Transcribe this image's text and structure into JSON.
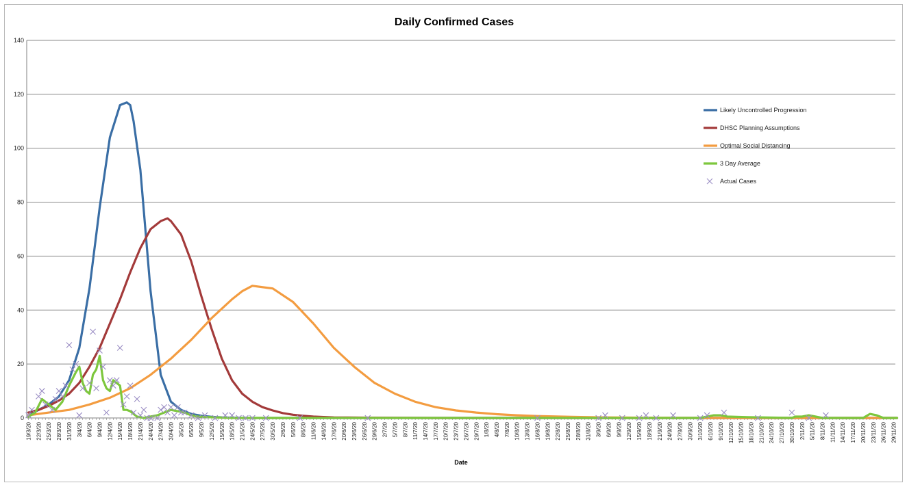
{
  "chart_data": {
    "type": "line",
    "title": "Daily Confirmed Cases",
    "xlabel": "Date",
    "ylabel": "",
    "ylim": [
      0,
      140
    ],
    "yticks": [
      0,
      20,
      40,
      60,
      80,
      100,
      120,
      140
    ],
    "grid": true,
    "legend_position": "top-right",
    "x_tick_labels": [
      "19/3/20",
      "22/3/20",
      "25/3/20",
      "28/3/20",
      "31/3/20",
      "3/4/20",
      "6/4/20",
      "9/4/20",
      "12/4/20",
      "15/4/20",
      "18/4/20",
      "21/4/20",
      "24/4/20",
      "27/4/20",
      "30/4/20",
      "3/5/20",
      "6/5/20",
      "9/5/20",
      "12/5/20",
      "15/5/20",
      "18/5/20",
      "21/5/20",
      "24/5/20",
      "27/5/20",
      "30/5/20",
      "2/6/20",
      "5/6/20",
      "8/6/20",
      "11/6/20",
      "14/6/20",
      "17/6/20",
      "20/6/20",
      "23/6/20",
      "26/6/20",
      "29/6/20",
      "2/7/20",
      "5/7/20",
      "8/7/20",
      "11/7/20",
      "14/7/20",
      "17/7/20",
      "20/7/20",
      "23/7/20",
      "26/7/20",
      "29/7/20",
      "1/8/20",
      "4/8/20",
      "7/8/20",
      "10/8/20",
      "13/8/20",
      "16/8/20",
      "19/8/20",
      "22/8/20",
      "25/8/20",
      "28/8/20",
      "31/8/20",
      "3/9/20",
      "6/9/20",
      "9/9/20",
      "12/9/20",
      "15/9/20",
      "18/9/20",
      "21/9/20",
      "24/9/20",
      "27/9/20",
      "30/9/20",
      "3/10/20",
      "6/10/20",
      "9/10/20",
      "12/10/20",
      "15/10/20",
      "18/10/20",
      "21/10/20",
      "24/10/20",
      "27/10/20",
      "30/10/20",
      "2/11/20",
      "5/11/20",
      "8/11/20",
      "11/11/20",
      "14/11/20",
      "17/11/20",
      "20/11/20",
      "23/11/20",
      "26/11/20",
      "29/11/20"
    ],
    "series": [
      {
        "name": "Likely Uncontrolled Progression",
        "color": "#3A6EA5",
        "style": "line",
        "x": [
          0,
          3,
          6,
          9,
          12,
          15,
          18,
          21,
          24,
          27,
          29,
          30,
          31,
          33,
          36,
          39,
          42,
          45,
          48,
          51,
          54,
          57,
          60,
          65,
          70,
          80,
          100,
          140,
          180,
          220,
          256
        ],
        "y": [
          1,
          3,
          5,
          8,
          14,
          26,
          48,
          78,
          104,
          116,
          117,
          116,
          110,
          92,
          47,
          16,
          6,
          3,
          1.5,
          0.8,
          0.4,
          0.2,
          0.1,
          0,
          0,
          0,
          0,
          0,
          0,
          0,
          0
        ]
      },
      {
        "name": "DHSC Planning Assumptions",
        "color": "#A33A3A",
        "style": "line",
        "x": [
          0,
          3,
          6,
          9,
          12,
          15,
          18,
          21,
          24,
          27,
          30,
          33,
          36,
          39,
          41,
          42,
          45,
          48,
          51,
          54,
          57,
          60,
          63,
          66,
          69,
          72,
          75,
          78,
          81,
          84,
          90,
          100,
          120,
          150,
          200,
          256
        ],
        "y": [
          2,
          3,
          4.5,
          6.5,
          9,
          13,
          19,
          26,
          35,
          44,
          54,
          63,
          70,
          73,
          74,
          73,
          68,
          58,
          45,
          33,
          22,
          14,
          9,
          6,
          4,
          2.8,
          1.8,
          1.2,
          0.8,
          0.5,
          0.2,
          0.1,
          0,
          0,
          0,
          0
        ]
      },
      {
        "name": "Optimal Social Distancing",
        "color": "#F39C40",
        "style": "line",
        "x": [
          0,
          6,
          12,
          18,
          24,
          30,
          36,
          42,
          48,
          54,
          60,
          63,
          66,
          72,
          78,
          84,
          90,
          96,
          102,
          108,
          114,
          120,
          126,
          132,
          138,
          144,
          150,
          160,
          170,
          180,
          200,
          230,
          256
        ],
        "y": [
          1,
          2,
          3,
          5,
          7.5,
          11,
          16,
          22,
          29,
          37,
          44,
          47,
          49,
          48,
          43,
          35,
          26,
          19,
          13,
          9,
          6,
          4,
          2.8,
          2,
          1.4,
          1,
          0.7,
          0.4,
          0.2,
          0.1,
          0,
          0,
          0
        ]
      },
      {
        "name": "3 Day Average",
        "color": "#7DC73D",
        "style": "line",
        "x": [
          0,
          2,
          4,
          6,
          8,
          10,
          12,
          14,
          15,
          16,
          17,
          18,
          19,
          20,
          21,
          22,
          23,
          24,
          25,
          26,
          27,
          28,
          29,
          30,
          31,
          32,
          34,
          36,
          38,
          40,
          42,
          44,
          46,
          48,
          50,
          55,
          60,
          65,
          70,
          80,
          100,
          150,
          197,
          198,
          200,
          202,
          204,
          206,
          212,
          225,
          226,
          228,
          230,
          232,
          234,
          236,
          238,
          240,
          242,
          244,
          246,
          248,
          250,
          252,
          254,
          256
        ],
        "y": [
          0.5,
          2,
          7,
          5,
          3,
          6,
          12,
          17,
          19,
          13,
          10,
          9,
          16,
          18,
          23,
          14,
          11,
          10,
          14,
          13,
          12,
          3,
          3,
          2.5,
          1.5,
          0.5,
          0,
          0.5,
          1,
          2,
          3,
          2.5,
          2,
          1,
          0.5,
          0.2,
          0,
          0,
          0,
          0,
          0,
          0,
          0,
          0,
          0.5,
          1,
          1,
          0.5,
          0.3,
          0,
          0.5,
          0.5,
          1,
          0.5,
          0,
          0,
          0,
          0,
          0,
          0,
          0,
          1.5,
          1,
          0,
          0,
          0
        ]
      },
      {
        "name": "Actual Cases",
        "color": "#9B8EC4",
        "style": "markers",
        "x": [
          0,
          1,
          3,
          4,
          5,
          7,
          8,
          9,
          10,
          11,
          12,
          13,
          14,
          15,
          16,
          18,
          19,
          20,
          21,
          22,
          23,
          24,
          25,
          26,
          27,
          28,
          29,
          30,
          31,
          32,
          33,
          34,
          35,
          36,
          38,
          39,
          40,
          41,
          42,
          43,
          44,
          45,
          46,
          48,
          50,
          52,
          55,
          58,
          60,
          62,
          64,
          66,
          70,
          80,
          100,
          150,
          168,
          170,
          175,
          180,
          182,
          185,
          190,
          198,
          200,
          205,
          215,
          225,
          230,
          235
        ],
        "y": [
          1,
          3,
          8,
          10,
          5,
          3,
          7,
          10,
          8,
          12,
          27,
          18,
          20,
          1,
          11,
          13,
          32,
          11,
          25,
          19,
          2,
          14,
          12,
          14,
          26,
          5,
          8,
          12,
          2,
          7,
          1,
          3,
          0,
          0,
          0,
          3,
          4,
          2,
          4,
          1,
          4,
          2,
          2,
          1,
          0,
          1,
          0,
          1,
          1,
          0,
          0,
          0,
          0,
          0,
          0,
          0,
          0,
          1,
          0,
          0,
          1,
          0,
          1,
          0,
          1,
          2,
          0,
          2,
          0,
          1
        ]
      }
    ]
  }
}
